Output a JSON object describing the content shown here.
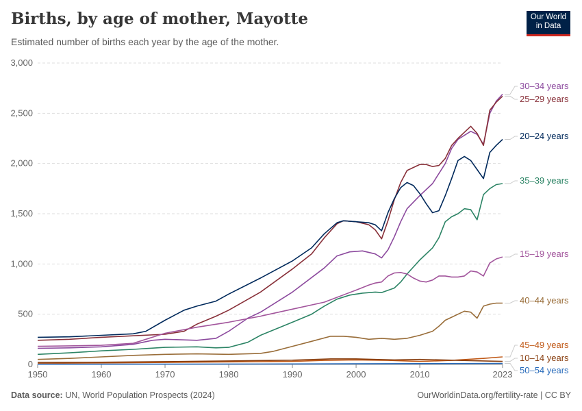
{
  "header": {
    "title": "Births, by age of mother, Mayotte",
    "subtitle": "Estimated number of births each year by the age of the mother.",
    "logo_line1": "Our World",
    "logo_line2": "in Data"
  },
  "footer": {
    "source_label": "Data source:",
    "source_text": "UN, World Population Prospects (2024)",
    "credit": "OurWorldinData.org/fertility-rate | CC BY"
  },
  "chart_data": {
    "type": "line",
    "title": "Births, by age of mother, Mayotte",
    "xlabel": "",
    "ylabel": "",
    "xlim": [
      1950,
      2023
    ],
    "ylim": [
      0,
      3000
    ],
    "grid": true,
    "x_ticks": [
      1950,
      1960,
      1970,
      1980,
      1990,
      2000,
      2010,
      2023
    ],
    "x_tick_labels": [
      "1950",
      "1960",
      "1970",
      "1980",
      "1990",
      "2000",
      "2010",
      "2023"
    ],
    "y_ticks": [
      0,
      500,
      1000,
      1500,
      2000,
      2500,
      3000
    ],
    "y_tick_labels": [
      "0",
      "500",
      "1,000",
      "1,500",
      "2,000",
      "2,500",
      "3,000"
    ],
    "series": [
      {
        "name": "30–34 years",
        "color": "#8c4a9e",
        "points": [
          [
            1950,
            160
          ],
          [
            1955,
            165
          ],
          [
            1960,
            175
          ],
          [
            1965,
            200
          ],
          [
            1968,
            240
          ],
          [
            1970,
            250
          ],
          [
            1975,
            240
          ],
          [
            1978,
            260
          ],
          [
            1980,
            330
          ],
          [
            1983,
            460
          ],
          [
            1985,
            520
          ],
          [
            1990,
            720
          ],
          [
            1995,
            960
          ],
          [
            1997,
            1080
          ],
          [
            1999,
            1120
          ],
          [
            2001,
            1130
          ],
          [
            2003,
            1100
          ],
          [
            2004,
            1060
          ],
          [
            2005,
            1140
          ],
          [
            2006,
            1270
          ],
          [
            2007,
            1420
          ],
          [
            2008,
            1550
          ],
          [
            2010,
            1680
          ],
          [
            2012,
            1800
          ],
          [
            2014,
            2000
          ],
          [
            2015,
            2150
          ],
          [
            2016,
            2240
          ],
          [
            2017,
            2280
          ],
          [
            2018,
            2320
          ],
          [
            2019,
            2290
          ],
          [
            2020,
            2190
          ],
          [
            2021,
            2500
          ],
          [
            2022,
            2620
          ],
          [
            2023,
            2690
          ]
        ]
      },
      {
        "name": "25–29 years",
        "color": "#883039",
        "points": [
          [
            1950,
            240
          ],
          [
            1955,
            250
          ],
          [
            1960,
            270
          ],
          [
            1965,
            285
          ],
          [
            1970,
            300
          ],
          [
            1973,
            330
          ],
          [
            1975,
            400
          ],
          [
            1978,
            480
          ],
          [
            1980,
            540
          ],
          [
            1985,
            720
          ],
          [
            1990,
            950
          ],
          [
            1993,
            1100
          ],
          [
            1995,
            1260
          ],
          [
            1997,
            1400
          ],
          [
            1998,
            1430
          ],
          [
            2000,
            1420
          ],
          [
            2002,
            1390
          ],
          [
            2003,
            1340
          ],
          [
            2004,
            1250
          ],
          [
            2005,
            1430
          ],
          [
            2006,
            1640
          ],
          [
            2007,
            1810
          ],
          [
            2008,
            1930
          ],
          [
            2010,
            1990
          ],
          [
            2011,
            1990
          ],
          [
            2012,
            1970
          ],
          [
            2013,
            1980
          ],
          [
            2014,
            2050
          ],
          [
            2015,
            2180
          ],
          [
            2016,
            2250
          ],
          [
            2017,
            2310
          ],
          [
            2018,
            2370
          ],
          [
            2019,
            2300
          ],
          [
            2020,
            2180
          ],
          [
            2021,
            2530
          ],
          [
            2022,
            2610
          ],
          [
            2023,
            2670
          ]
        ]
      },
      {
        "name": "20–24 years",
        "color": "#00295b",
        "points": [
          [
            1950,
            270
          ],
          [
            1955,
            275
          ],
          [
            1960,
            290
          ],
          [
            1965,
            305
          ],
          [
            1967,
            330
          ],
          [
            1970,
            440
          ],
          [
            1973,
            540
          ],
          [
            1975,
            580
          ],
          [
            1978,
            630
          ],
          [
            1980,
            700
          ],
          [
            1985,
            860
          ],
          [
            1990,
            1030
          ],
          [
            1993,
            1160
          ],
          [
            1995,
            1300
          ],
          [
            1997,
            1410
          ],
          [
            1998,
            1430
          ],
          [
            2000,
            1420
          ],
          [
            2002,
            1410
          ],
          [
            2003,
            1390
          ],
          [
            2004,
            1330
          ],
          [
            2005,
            1510
          ],
          [
            2006,
            1650
          ],
          [
            2007,
            1760
          ],
          [
            2008,
            1810
          ],
          [
            2009,
            1780
          ],
          [
            2010,
            1700
          ],
          [
            2011,
            1600
          ],
          [
            2012,
            1510
          ],
          [
            2013,
            1530
          ],
          [
            2014,
            1680
          ],
          [
            2015,
            1850
          ],
          [
            2016,
            2030
          ],
          [
            2017,
            2070
          ],
          [
            2018,
            2030
          ],
          [
            2019,
            1940
          ],
          [
            2020,
            1850
          ],
          [
            2021,
            2110
          ],
          [
            2022,
            2180
          ],
          [
            2023,
            2240
          ]
        ]
      },
      {
        "name": "35–39 years",
        "color": "#2c8465",
        "points": [
          [
            1950,
            100
          ],
          [
            1955,
            115
          ],
          [
            1960,
            135
          ],
          [
            1965,
            150
          ],
          [
            1970,
            170
          ],
          [
            1975,
            175
          ],
          [
            1978,
            165
          ],
          [
            1980,
            170
          ],
          [
            1983,
            220
          ],
          [
            1985,
            290
          ],
          [
            1990,
            420
          ],
          [
            1993,
            500
          ],
          [
            1995,
            580
          ],
          [
            1997,
            650
          ],
          [
            1999,
            690
          ],
          [
            2001,
            710
          ],
          [
            2003,
            720
          ],
          [
            2004,
            715
          ],
          [
            2006,
            760
          ],
          [
            2007,
            820
          ],
          [
            2008,
            900
          ],
          [
            2010,
            1040
          ],
          [
            2012,
            1160
          ],
          [
            2013,
            1260
          ],
          [
            2014,
            1420
          ],
          [
            2015,
            1470
          ],
          [
            2016,
            1500
          ],
          [
            2017,
            1550
          ],
          [
            2018,
            1540
          ],
          [
            2019,
            1440
          ],
          [
            2020,
            1690
          ],
          [
            2021,
            1750
          ],
          [
            2022,
            1790
          ],
          [
            2023,
            1800
          ]
        ]
      },
      {
        "name": "15–19 years",
        "color": "#a2559c",
        "points": [
          [
            1950,
            180
          ],
          [
            1955,
            185
          ],
          [
            1960,
            190
          ],
          [
            1965,
            210
          ],
          [
            1970,
            310
          ],
          [
            1975,
            370
          ],
          [
            1980,
            420
          ],
          [
            1985,
            480
          ],
          [
            1990,
            550
          ],
          [
            1995,
            620
          ],
          [
            2000,
            740
          ],
          [
            2002,
            790
          ],
          [
            2003,
            810
          ],
          [
            2004,
            820
          ],
          [
            2005,
            880
          ],
          [
            2006,
            910
          ],
          [
            2007,
            915
          ],
          [
            2008,
            900
          ],
          [
            2009,
            860
          ],
          [
            2010,
            830
          ],
          [
            2011,
            820
          ],
          [
            2012,
            840
          ],
          [
            2013,
            880
          ],
          [
            2014,
            880
          ],
          [
            2015,
            870
          ],
          [
            2016,
            870
          ],
          [
            2017,
            880
          ],
          [
            2018,
            930
          ],
          [
            2019,
            920
          ],
          [
            2020,
            880
          ],
          [
            2021,
            1010
          ],
          [
            2022,
            1050
          ],
          [
            2023,
            1070
          ]
        ]
      },
      {
        "name": "40–44 years",
        "color": "#996d39",
        "points": [
          [
            1950,
            50
          ],
          [
            1955,
            60
          ],
          [
            1960,
            75
          ],
          [
            1965,
            90
          ],
          [
            1970,
            100
          ],
          [
            1975,
            105
          ],
          [
            1980,
            100
          ],
          [
            1985,
            110
          ],
          [
            1987,
            130
          ],
          [
            1990,
            180
          ],
          [
            1993,
            230
          ],
          [
            1996,
            280
          ],
          [
            1998,
            280
          ],
          [
            2000,
            270
          ],
          [
            2002,
            250
          ],
          [
            2004,
            260
          ],
          [
            2006,
            250
          ],
          [
            2008,
            260
          ],
          [
            2010,
            290
          ],
          [
            2012,
            330
          ],
          [
            2013,
            380
          ],
          [
            2014,
            440
          ],
          [
            2015,
            470
          ],
          [
            2016,
            500
          ],
          [
            2017,
            530
          ],
          [
            2018,
            520
          ],
          [
            2019,
            460
          ],
          [
            2020,
            580
          ],
          [
            2021,
            600
          ],
          [
            2022,
            610
          ],
          [
            2023,
            610
          ]
        ]
      },
      {
        "name": "45–49 years",
        "color": "#c05917",
        "points": [
          [
            1950,
            10
          ],
          [
            1960,
            15
          ],
          [
            1970,
            20
          ],
          [
            1980,
            25
          ],
          [
            1990,
            30
          ],
          [
            1995,
            40
          ],
          [
            2000,
            45
          ],
          [
            2005,
            40
          ],
          [
            2010,
            30
          ],
          [
            2015,
            40
          ],
          [
            2020,
            60
          ],
          [
            2023,
            75
          ]
        ]
      },
      {
        "name": "10–14 years",
        "color": "#883e0f",
        "points": [
          [
            1950,
            20
          ],
          [
            1960,
            22
          ],
          [
            1970,
            28
          ],
          [
            1980,
            35
          ],
          [
            1990,
            42
          ],
          [
            1996,
            55
          ],
          [
            2000,
            55
          ],
          [
            2003,
            50
          ],
          [
            2006,
            45
          ],
          [
            2010,
            50
          ],
          [
            2015,
            42
          ],
          [
            2020,
            35
          ],
          [
            2023,
            30
          ]
        ]
      },
      {
        "name": "50–54 years",
        "color": "#286bbb",
        "points": [
          [
            1950,
            2
          ],
          [
            1970,
            3
          ],
          [
            1990,
            5
          ],
          [
            2010,
            8
          ],
          [
            2023,
            10
          ]
        ]
      }
    ],
    "labels": [
      {
        "text": "30–34 years",
        "color": "#8c4a9e"
      },
      {
        "text": "25–29 years",
        "color": "#883039"
      },
      {
        "text": "20–24 years",
        "color": "#00295b"
      },
      {
        "text": "35–39 years",
        "color": "#2c8465"
      },
      {
        "text": "15–19 years",
        "color": "#a2559c"
      },
      {
        "text": "40–44 years",
        "color": "#996d39"
      },
      {
        "text": "45–49 years",
        "color": "#c05917"
      },
      {
        "text": "10–14 years",
        "color": "#883e0f"
      },
      {
        "text": "50–54 years",
        "color": "#286bbb"
      }
    ]
  }
}
